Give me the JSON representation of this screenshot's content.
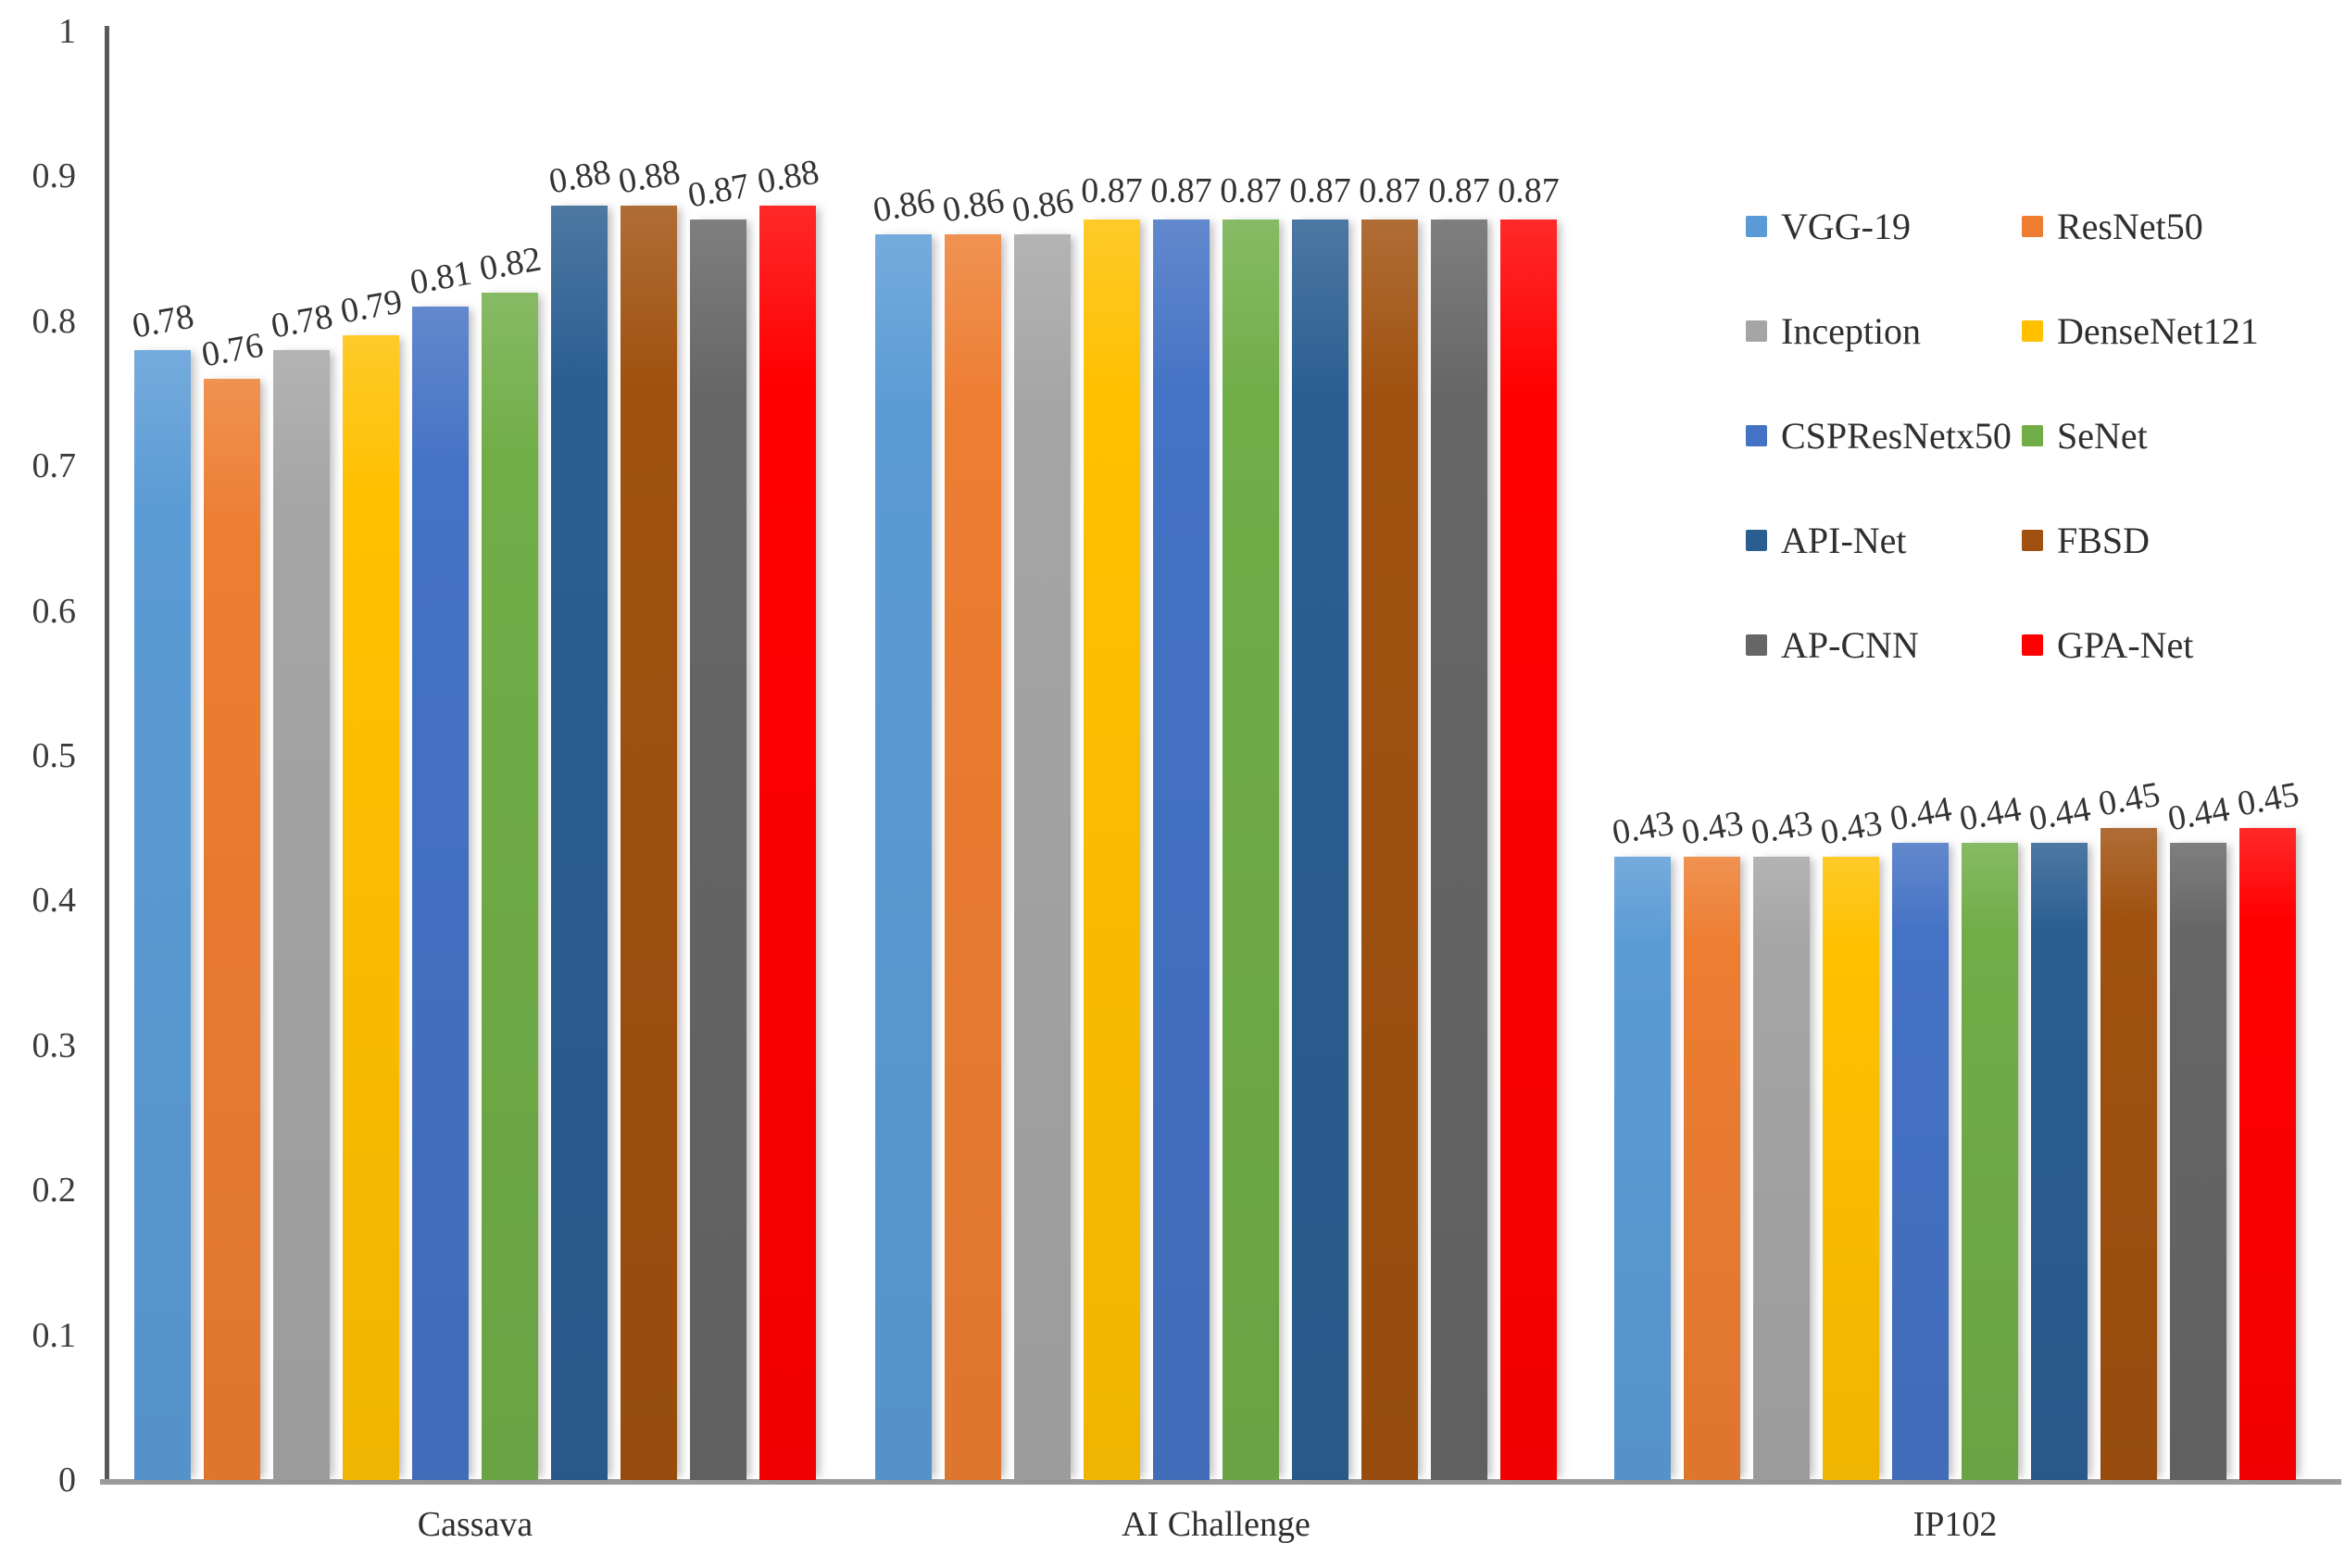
{
  "chart_data": {
    "type": "bar",
    "title": "",
    "xlabel": "",
    "ylabel": "",
    "categories": [
      "Cassava",
      "AI Challenge",
      "IP102"
    ],
    "series": [
      {
        "name": "VGG-19",
        "color": "#5B9BD5",
        "values": [
          0.78,
          0.86,
          0.43
        ]
      },
      {
        "name": "ResNet50",
        "color": "#ED7D31",
        "values": [
          0.76,
          0.86,
          0.43
        ]
      },
      {
        "name": "Inception",
        "color": "#A5A5A5",
        "values": [
          0.78,
          0.86,
          0.43
        ]
      },
      {
        "name": "DenseNet121",
        "color": "#FFC000",
        "values": [
          0.79,
          0.87,
          0.43
        ]
      },
      {
        "name": "CSPResNetx50",
        "color": "#4472C4",
        "values": [
          0.81,
          0.87,
          0.44
        ]
      },
      {
        "name": "SeNet",
        "color": "#70AD47",
        "values": [
          0.82,
          0.87,
          0.44
        ]
      },
      {
        "name": "API-Net",
        "color": "#2A5E91",
        "values": [
          0.88,
          0.87,
          0.44
        ]
      },
      {
        "name": "FBSD",
        "color": "#A0510F",
        "values": [
          0.88,
          0.87,
          0.45
        ]
      },
      {
        "name": "AP-CNN",
        "color": "#666666",
        "values": [
          0.87,
          0.87,
          0.44
        ]
      },
      {
        "name": "GPA-Net",
        "color": "#FF0000",
        "values": [
          0.88,
          0.87,
          0.45
        ]
      }
    ],
    "ylim": [
      0,
      1
    ],
    "yticks": [
      "1",
      "0.9",
      "0.8",
      "0.7",
      "0.6",
      "0.5",
      "0.4",
      "0.3",
      "0.2",
      "0.1",
      "0"
    ],
    "value_label_decimals": 2,
    "grid": false,
    "legend_position": "right",
    "legend_columns": 2
  }
}
